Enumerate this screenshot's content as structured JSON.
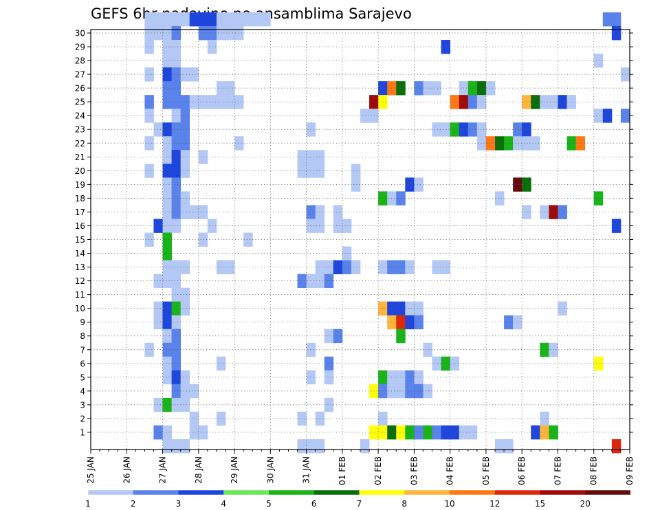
{
  "chart_data": {
    "type": "heatmap",
    "title": "GEFS 6hr padavine po ansamblima Sarajevo",
    "xlabel": "",
    "ylabel": "",
    "x_tick_labels": [
      "25 JAN",
      "26 JAN",
      "27 JAN",
      "28 JAN",
      "29 JAN",
      "30 JAN",
      "31 JAN",
      "01 FEB",
      "02 FEB",
      "03 FEB",
      "04 FEB",
      "05 FEB",
      "06 FEB",
      "07 FEB",
      "08 FEB",
      "09 FEB"
    ],
    "y_tick_labels": [
      "1",
      "2",
      "3",
      "4",
      "5",
      "6",
      "7",
      "8",
      "9",
      "10",
      "11",
      "12",
      "13",
      "14",
      "15",
      "16",
      "17",
      "18",
      "19",
      "20",
      "21",
      "22",
      "23",
      "24",
      "25",
      "26",
      "27",
      "28",
      "29",
      "30"
    ],
    "x_range_days": [
      0,
      15
    ],
    "y_range": [
      0,
      30
    ],
    "grid": true,
    "colorbar_levels": [
      "1",
      "2",
      "3",
      "4",
      "5",
      "6",
      "7",
      "8",
      "10",
      "12",
      "15",
      "20"
    ],
    "colorbar_colors": [
      "#b4c8f5",
      "#5a82eb",
      "#1e46dc",
      "#6ee65a",
      "#18b418",
      "#0a6e0a",
      "#ffff0a",
      "#ffb43c",
      "#ff7814",
      "#dc280a",
      "#a00a0a",
      "#640a0a"
    ],
    "cells": [
      [
        30,
        6,
        9,
        0
      ],
      [
        30,
        7,
        8,
        0
      ],
      [
        30,
        8,
        9,
        0
      ],
      [
        30,
        9,
        10,
        0
      ],
      [
        30,
        10,
        11,
        0
      ],
      [
        30,
        11,
        14,
        2
      ],
      [
        30,
        14,
        16,
        0
      ],
      [
        30,
        16,
        18,
        0
      ],
      [
        30,
        18,
        20,
        0
      ],
      [
        30,
        57,
        59,
        1
      ],
      [
        29,
        6,
        8,
        0
      ],
      [
        29,
        8,
        9,
        0
      ],
      [
        29,
        9,
        10,
        1
      ],
      [
        29,
        12,
        14,
        1
      ],
      [
        29,
        14,
        17,
        0
      ],
      [
        29,
        58,
        59,
        2
      ],
      [
        28,
        6,
        7,
        0
      ],
      [
        28,
        8,
        10,
        0
      ],
      [
        28,
        13,
        14,
        0
      ],
      [
        28,
        39,
        40,
        2
      ],
      [
        27,
        8,
        10,
        0
      ],
      [
        27,
        56,
        57,
        0
      ],
      [
        26,
        6,
        7,
        0
      ],
      [
        26,
        8,
        9,
        2
      ],
      [
        26,
        9,
        10,
        1
      ],
      [
        26,
        10,
        12,
        0
      ],
      [
        26,
        59,
        60,
        0
      ],
      [
        25,
        8,
        10,
        1
      ],
      [
        25,
        14,
        16,
        0
      ],
      [
        25,
        32,
        33,
        2
      ],
      [
        25,
        33,
        34,
        8
      ],
      [
        25,
        34,
        35,
        5
      ],
      [
        25,
        36,
        37,
        1
      ],
      [
        25,
        37,
        39,
        0
      ],
      [
        25,
        41,
        42,
        0
      ],
      [
        25,
        42,
        43,
        4
      ],
      [
        25,
        43,
        44,
        5
      ],
      [
        25,
        44,
        45,
        0
      ],
      [
        24,
        6,
        7,
        1
      ],
      [
        24,
        8,
        11,
        1
      ],
      [
        24,
        11,
        17,
        0
      ],
      [
        24,
        31,
        32,
        10
      ],
      [
        24,
        32,
        33,
        6
      ],
      [
        24,
        40,
        41,
        8
      ],
      [
        24,
        41,
        42,
        10
      ],
      [
        24,
        42,
        43,
        1
      ],
      [
        24,
        43,
        44,
        0
      ],
      [
        24,
        48,
        49,
        7
      ],
      [
        24,
        49,
        50,
        5
      ],
      [
        24,
        50,
        52,
        0
      ],
      [
        24,
        52,
        53,
        2
      ],
      [
        24,
        53,
        54,
        0
      ],
      [
        23,
        6,
        7,
        0
      ],
      [
        23,
        9,
        10,
        0
      ],
      [
        23,
        10,
        11,
        1
      ],
      [
        23,
        30,
        32,
        0
      ],
      [
        23,
        56,
        57,
        0
      ],
      [
        23,
        57,
        58,
        2
      ],
      [
        23,
        59,
        60,
        1
      ],
      [
        22,
        7,
        8,
        0
      ],
      [
        22,
        8,
        9,
        2
      ],
      [
        22,
        9,
        11,
        1
      ],
      [
        22,
        24,
        25,
        0
      ],
      [
        22,
        38,
        40,
        0
      ],
      [
        22,
        40,
        41,
        4
      ],
      [
        22,
        41,
        42,
        2
      ],
      [
        22,
        42,
        43,
        1
      ],
      [
        22,
        43,
        44,
        0
      ],
      [
        22,
        47,
        48,
        1
      ],
      [
        22,
        48,
        49,
        2
      ],
      [
        21,
        6,
        7,
        0
      ],
      [
        21,
        8,
        9,
        0
      ],
      [
        21,
        9,
        11,
        1
      ],
      [
        21,
        16,
        17,
        0
      ],
      [
        21,
        43,
        44,
        0
      ],
      [
        21,
        44,
        45,
        8
      ],
      [
        21,
        45,
        46,
        5
      ],
      [
        21,
        46,
        47,
        4
      ],
      [
        21,
        47,
        48,
        0
      ],
      [
        21,
        48,
        50,
        0
      ],
      [
        21,
        53,
        54,
        4
      ],
      [
        21,
        54,
        55,
        8
      ],
      [
        20,
        8,
        9,
        0
      ],
      [
        20,
        9,
        10,
        2
      ],
      [
        20,
        10,
        11,
        0
      ],
      [
        20,
        12,
        13,
        0
      ],
      [
        20,
        23,
        26,
        0
      ],
      [
        19,
        6,
        7,
        0
      ],
      [
        19,
        8,
        10,
        2
      ],
      [
        19,
        10,
        11,
        0
      ],
      [
        19,
        23,
        26,
        0
      ],
      [
        19,
        29,
        30,
        0
      ],
      [
        18,
        8,
        9,
        0
      ],
      [
        18,
        9,
        10,
        1
      ],
      [
        18,
        29,
        30,
        0
      ],
      [
        18,
        35,
        36,
        2
      ],
      [
        18,
        36,
        37,
        0
      ],
      [
        18,
        47,
        48,
        11
      ],
      [
        18,
        48,
        49,
        5
      ],
      [
        17,
        8,
        9,
        0
      ],
      [
        17,
        9,
        10,
        1
      ],
      [
        17,
        10,
        11,
        0
      ],
      [
        17,
        32,
        33,
        4
      ],
      [
        17,
        33,
        34,
        0
      ],
      [
        17,
        34,
        35,
        1
      ],
      [
        17,
        45,
        46,
        0
      ],
      [
        17,
        56,
        57,
        4
      ],
      [
        16,
        8,
        9,
        0
      ],
      [
        16,
        9,
        10,
        1
      ],
      [
        16,
        10,
        13,
        0
      ],
      [
        16,
        24,
        25,
        1
      ],
      [
        16,
        25,
        26,
        0
      ],
      [
        16,
        27,
        28,
        0
      ],
      [
        16,
        48,
        49,
        0
      ],
      [
        16,
        50,
        51,
        0
      ],
      [
        16,
        51,
        52,
        10
      ],
      [
        16,
        52,
        53,
        1
      ],
      [
        15,
        7,
        8,
        2
      ],
      [
        15,
        8,
        9,
        0
      ],
      [
        15,
        9,
        10,
        0
      ],
      [
        15,
        13,
        14,
        0
      ],
      [
        15,
        24,
        26,
        0
      ],
      [
        15,
        27,
        29,
        0
      ],
      [
        15,
        58,
        59,
        2
      ],
      [
        14,
        6,
        7,
        0
      ],
      [
        14,
        8,
        9,
        4
      ],
      [
        14,
        12,
        13,
        0
      ],
      [
        14,
        17,
        18,
        0
      ],
      [
        13,
        8,
        9,
        4
      ],
      [
        13,
        28,
        29,
        0
      ],
      [
        12,
        8,
        11,
        0
      ],
      [
        12,
        14,
        16,
        0
      ],
      [
        12,
        25,
        27,
        0
      ],
      [
        12,
        27,
        28,
        2
      ],
      [
        12,
        28,
        29,
        1
      ],
      [
        12,
        29,
        30,
        0
      ],
      [
        12,
        32,
        33,
        0
      ],
      [
        12,
        33,
        35,
        1
      ],
      [
        12,
        35,
        36,
        0
      ],
      [
        12,
        38,
        40,
        0
      ],
      [
        11,
        7,
        10,
        0
      ],
      [
        11,
        23,
        24,
        1
      ],
      [
        11,
        24,
        26,
        0
      ],
      [
        11,
        26,
        27,
        1
      ],
      [
        10,
        9,
        11,
        0
      ],
      [
        9,
        7,
        8,
        0
      ],
      [
        9,
        8,
        9,
        2
      ],
      [
        9,
        9,
        10,
        4
      ],
      [
        9,
        10,
        11,
        0
      ],
      [
        9,
        32,
        33,
        7
      ],
      [
        9,
        33,
        35,
        2
      ],
      [
        9,
        35,
        37,
        0
      ],
      [
        9,
        52,
        53,
        0
      ],
      [
        8,
        7,
        8,
        0
      ],
      [
        8,
        8,
        9,
        2
      ],
      [
        8,
        9,
        10,
        0
      ],
      [
        8,
        33,
        34,
        7
      ],
      [
        8,
        34,
        35,
        9
      ],
      [
        8,
        35,
        36,
        2
      ],
      [
        8,
        36,
        37,
        1
      ],
      [
        8,
        46,
        47,
        1
      ],
      [
        8,
        47,
        48,
        0
      ],
      [
        7,
        8,
        9,
        0
      ],
      [
        7,
        9,
        10,
        1
      ],
      [
        7,
        26,
        27,
        0
      ],
      [
        7,
        27,
        28,
        1
      ],
      [
        7,
        34,
        35,
        4
      ],
      [
        6,
        6,
        7,
        0
      ],
      [
        6,
        8,
        9,
        1
      ],
      [
        6,
        9,
        10,
        1
      ],
      [
        6,
        24,
        25,
        0
      ],
      [
        6,
        37,
        38,
        0
      ],
      [
        6,
        50,
        51,
        4
      ],
      [
        6,
        51,
        52,
        0
      ],
      [
        5,
        8,
        9,
        0
      ],
      [
        5,
        9,
        10,
        1
      ],
      [
        5,
        14,
        15,
        0
      ],
      [
        5,
        26,
        27,
        1
      ],
      [
        5,
        38,
        39,
        0
      ],
      [
        5,
        39,
        40,
        4
      ],
      [
        5,
        40,
        41,
        0
      ],
      [
        5,
        56,
        57,
        6
      ],
      [
        4,
        8,
        9,
        0
      ],
      [
        4,
        9,
        10,
        2
      ],
      [
        4,
        10,
        11,
        0
      ],
      [
        4,
        24,
        25,
        0
      ],
      [
        4,
        26,
        27,
        0
      ],
      [
        4,
        32,
        33,
        4
      ],
      [
        4,
        33,
        35,
        0
      ],
      [
        4,
        35,
        36,
        1
      ],
      [
        4,
        36,
        37,
        0
      ],
      [
        3,
        9,
        10,
        1
      ],
      [
        3,
        10,
        12,
        0
      ],
      [
        3,
        31,
        32,
        6
      ],
      [
        3,
        32,
        33,
        1
      ],
      [
        3,
        33,
        35,
        0
      ],
      [
        3,
        35,
        37,
        1
      ],
      [
        3,
        37,
        38,
        0
      ],
      [
        2,
        7,
        8,
        0
      ],
      [
        2,
        8,
        9,
        4
      ],
      [
        2,
        9,
        11,
        0
      ],
      [
        2,
        26,
        27,
        0
      ],
      [
        1,
        11,
        12,
        0
      ],
      [
        1,
        14,
        15,
        0
      ],
      [
        1,
        23,
        24,
        0
      ],
      [
        1,
        25,
        26,
        0
      ],
      [
        1,
        32,
        33,
        0
      ],
      [
        1,
        50,
        51,
        0
      ],
      [
        0,
        7,
        8,
        1
      ],
      [
        0,
        8,
        9,
        0
      ],
      [
        0,
        11,
        13,
        0
      ],
      [
        0,
        31,
        33,
        6
      ],
      [
        0,
        33,
        34,
        5
      ],
      [
        0,
        34,
        35,
        6
      ],
      [
        0,
        35,
        36,
        4
      ],
      [
        0,
        36,
        37,
        1
      ],
      [
        0,
        37,
        38,
        4
      ],
      [
        0,
        38,
        39,
        1
      ],
      [
        0,
        39,
        41,
        2
      ],
      [
        0,
        41,
        43,
        0
      ],
      [
        0,
        49,
        50,
        2
      ],
      [
        0,
        50,
        51,
        7
      ],
      [
        0,
        51,
        52,
        4
      ],
      [
        -1,
        8,
        11,
        0
      ],
      [
        -1,
        23,
        26,
        0
      ],
      [
        -1,
        30,
        31,
        0
      ],
      [
        -1,
        45,
        47,
        0
      ],
      [
        -1,
        58,
        59,
        9
      ]
    ]
  }
}
